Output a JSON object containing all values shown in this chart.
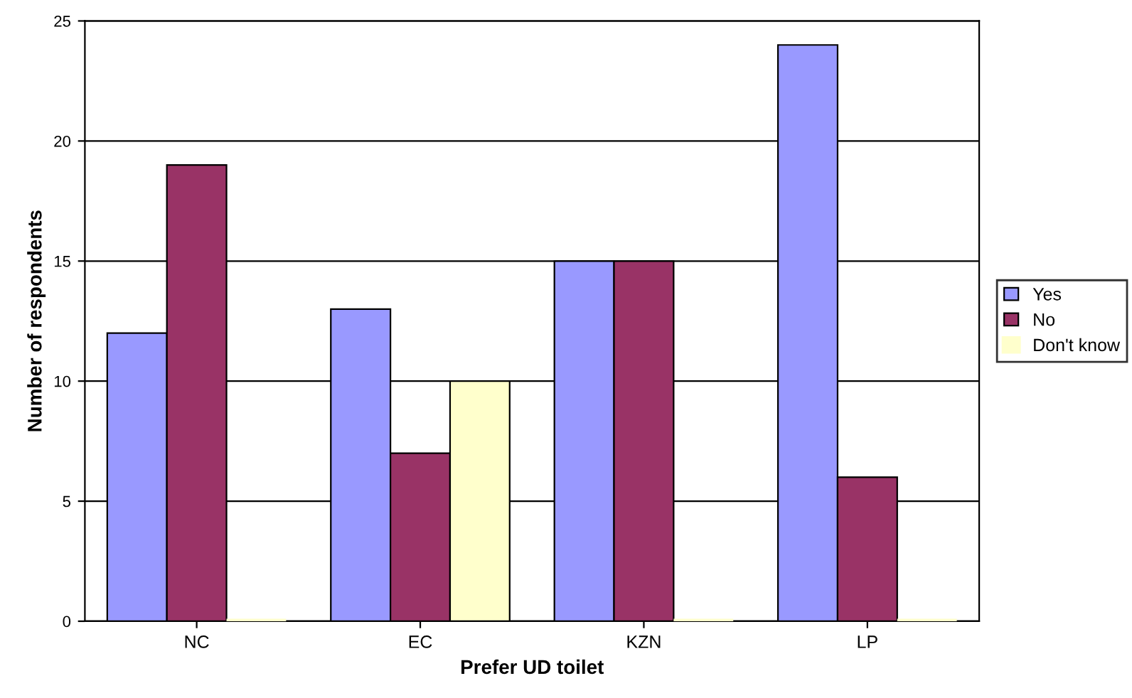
{
  "chart_data": {
    "type": "bar",
    "xlabel": "Prefer UD toilet",
    "ylabel": "Number of respondents",
    "categories": [
      "NC",
      "EC",
      "KZN",
      "LP"
    ],
    "series": [
      {
        "name": "Yes",
        "color": "#9999ff",
        "values": [
          12,
          13,
          15,
          24
        ]
      },
      {
        "name": "No",
        "color": "#993366",
        "values": [
          19,
          7,
          15,
          6
        ]
      },
      {
        "name": "Don't know",
        "color": "#ffffcc",
        "values": [
          0,
          10,
          0,
          0
        ]
      }
    ],
    "ylim": [
      0,
      25
    ],
    "yticks": [
      0,
      5,
      10,
      15,
      20,
      25
    ],
    "grid": "y",
    "legend": "right"
  }
}
